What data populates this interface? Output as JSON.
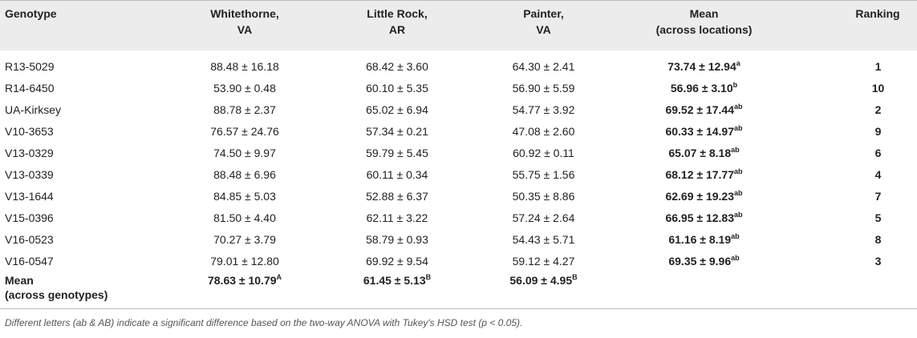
{
  "table": {
    "columns": [
      [
        "Genotype"
      ],
      [
        "Whitethorne,",
        "VA"
      ],
      [
        "Little Rock,",
        "AR"
      ],
      [
        "Painter,",
        "VA"
      ],
      [
        "Mean",
        "(across locations)"
      ],
      [
        "Ranking"
      ]
    ],
    "rows": [
      {
        "genotype": "R13-5029",
        "cells": [
          "88.48 ± 16.18",
          "68.42 ± 3.60",
          "64.30 ± 2.41"
        ],
        "mean": {
          "text": "73.74 ± 12.94",
          "sup": "a"
        },
        "rank": "1"
      },
      {
        "genotype": "R14-6450",
        "cells": [
          "53.90 ± 0.48",
          "60.10 ± 5.35",
          "56.90 ± 5.59"
        ],
        "mean": {
          "text": "56.96 ± 3.10",
          "sup": "b"
        },
        "rank": "10"
      },
      {
        "genotype": "UA-Kirksey",
        "cells": [
          "88.78 ± 2.37",
          "65.02 ± 6.94",
          "54.77 ± 3.92"
        ],
        "mean": {
          "text": "69.52 ± 17.44",
          "sup": "ab"
        },
        "rank": "2"
      },
      {
        "genotype": "V10-3653",
        "cells": [
          "76.57 ± 24.76",
          "57.34 ± 0.21",
          "47.08 ± 2.60"
        ],
        "mean": {
          "text": "60.33 ± 14.97",
          "sup": "ab"
        },
        "rank": "9"
      },
      {
        "genotype": "V13-0329",
        "cells": [
          "74.50 ± 9.97",
          "59.79 ± 5.45",
          "60.92 ± 0.11"
        ],
        "mean": {
          "text": "65.07 ± 8.18",
          "sup": "ab"
        },
        "rank": "6"
      },
      {
        "genotype": "V13-0339",
        "cells": [
          "88.48 ± 6.96",
          "60.11 ± 0.34",
          "55.75 ± 1.56"
        ],
        "mean": {
          "text": "68.12 ± 17.77",
          "sup": "ab"
        },
        "rank": "4"
      },
      {
        "genotype": "V13-1644",
        "cells": [
          "84.85 ± 5.03",
          "52.88 ± 6.37",
          "50.35 ± 8.86"
        ],
        "mean": {
          "text": "62.69 ± 19.23",
          "sup": "ab"
        },
        "rank": "7"
      },
      {
        "genotype": "V15-0396",
        "cells": [
          "81.50 ± 4.40",
          "62.11 ± 3.22",
          "57.24 ± 2.64"
        ],
        "mean": {
          "text": "66.95 ± 12.83",
          "sup": "ab"
        },
        "rank": "5"
      },
      {
        "genotype": "V16-0523",
        "cells": [
          "70.27 ± 3.79",
          "58.79 ± 0.93",
          "54.43 ± 5.71"
        ],
        "mean": {
          "text": "61.16 ± 8.19",
          "sup": "ab"
        },
        "rank": "8"
      },
      {
        "genotype": "V16-0547",
        "cells": [
          "79.01 ± 12.80",
          "69.92 ± 9.54",
          "59.12 ± 4.27"
        ],
        "mean": {
          "text": "69.35 ± 9.96",
          "sup": "ab"
        },
        "rank": "3"
      }
    ],
    "footer": {
      "label": [
        "Mean",
        "(across genotypes)"
      ],
      "cells": [
        {
          "text": "78.63 ± 10.79",
          "sup": "A"
        },
        {
          "text": "61.45 ± 5.13",
          "sup": "B"
        },
        {
          "text": "56.09 ± 4.95",
          "sup": "B"
        }
      ]
    },
    "note": "Different letters (ab & AB) indicate a significant difference based on the two-way ANOVA with Tukey's HSD test (p < 0.05)."
  }
}
